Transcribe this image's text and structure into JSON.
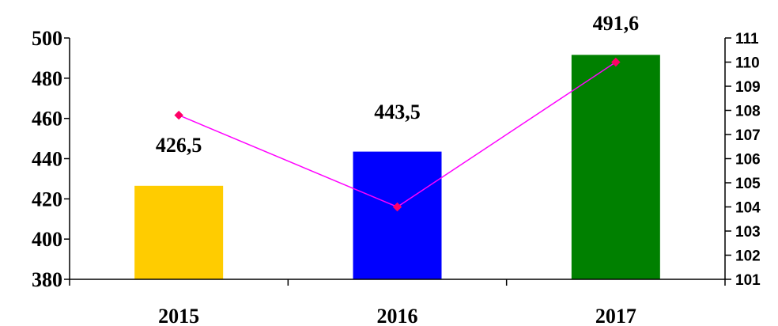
{
  "chart_data": {
    "type": "bar",
    "categories": [
      "2015",
      "2016",
      "2017"
    ],
    "series": [
      {
        "type": "bar",
        "axis": "left",
        "values": [
          426.5,
          443.5,
          491.6
        ],
        "labels": [
          "426,5",
          "443,5",
          "491,6"
        ],
        "colors": [
          "#FFCC00",
          "#0000FF",
          "#008000"
        ]
      },
      {
        "type": "line",
        "axis": "right",
        "values": [
          107.8,
          104.0,
          110.0
        ],
        "color": "#FF00FF",
        "marker_color": "#FF0066"
      }
    ],
    "y_left": {
      "ticks": [
        "380",
        "400",
        "420",
        "440",
        "460",
        "480",
        "500"
      ],
      "ylim": [
        380,
        500
      ]
    },
    "y_right": {
      "ticks": [
        "101",
        "102",
        "103",
        "104",
        "105",
        "106",
        "107",
        "108",
        "109",
        "110",
        "111"
      ],
      "ylim": [
        101,
        111
      ]
    },
    "grid": false,
    "legend": "none"
  }
}
